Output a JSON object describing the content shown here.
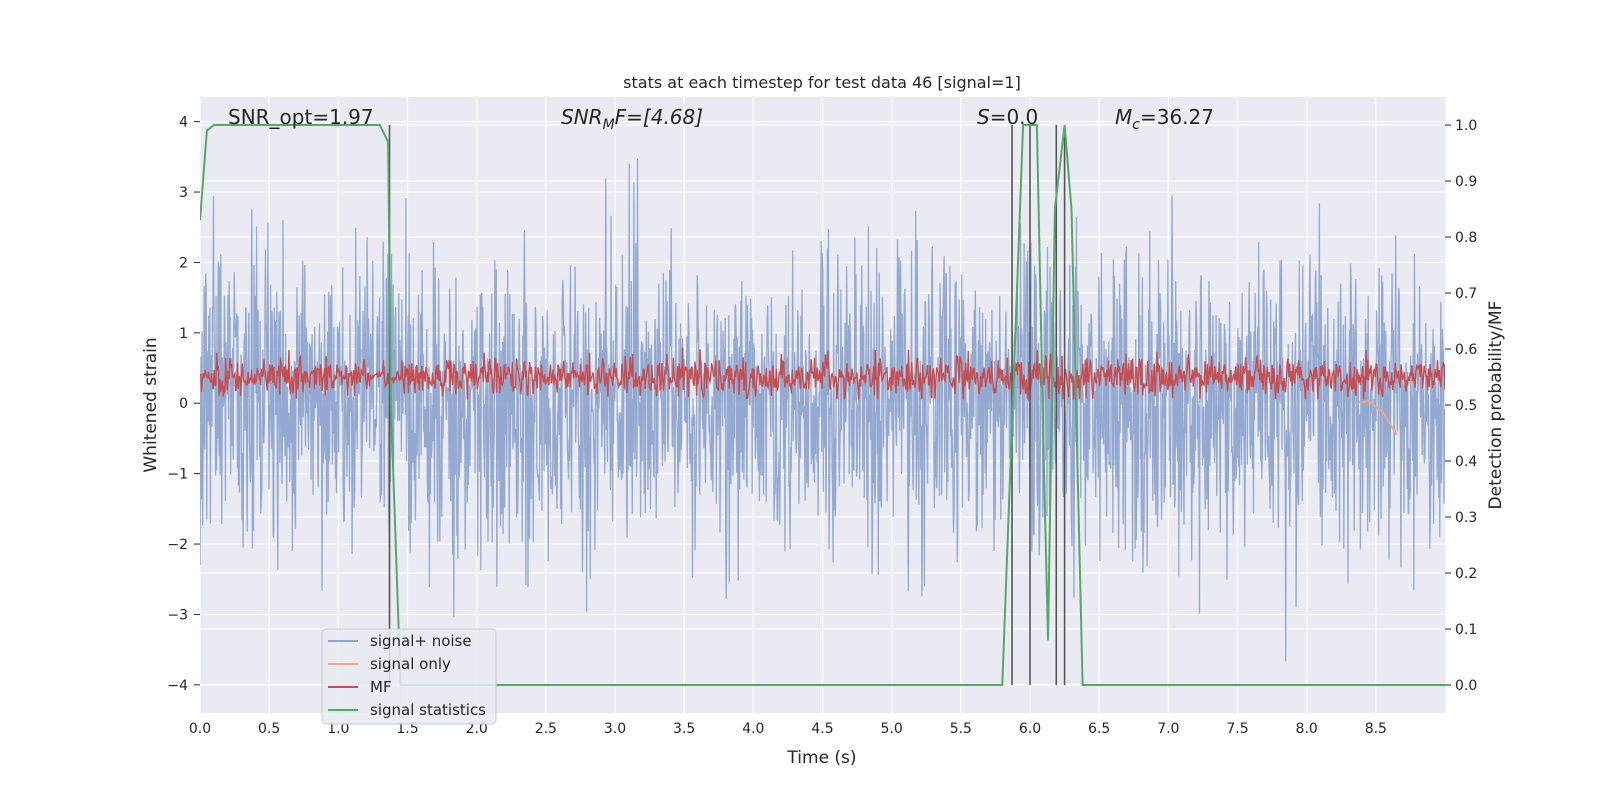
{
  "chart_data": {
    "type": "line",
    "title": "stats at each timestep for test data 46 [signal=1]",
    "xlabel": "Time (s)",
    "ylabel": "Whitened strain",
    "y2label": "Detection probability/MF",
    "xlim": [
      0.0,
      9.0
    ],
    "ylim": [
      -4.4,
      4.35
    ],
    "y2lim": [
      -0.05,
      1.05
    ],
    "xticks": [
      "0.0",
      "0.5",
      "1.0",
      "1.5",
      "2.0",
      "2.5",
      "3.0",
      "3.5",
      "4.0",
      "4.5",
      "5.0",
      "5.5",
      "6.0",
      "6.5",
      "7.0",
      "7.5",
      "8.0",
      "8.5"
    ],
    "yticks": [
      "−4",
      "−3",
      "−2",
      "−1",
      "0",
      "1",
      "2",
      "3",
      "4"
    ],
    "y2ticks": [
      "0.0",
      "0.1",
      "0.2",
      "0.3",
      "0.4",
      "0.5",
      "0.6",
      "0.7",
      "0.8",
      "0.9",
      "1.0"
    ],
    "grid": true,
    "legend_position": "lower-left",
    "annotations": {
      "snr_opt": "SNR_opt=1.97",
      "snr_mf_main": "SNR",
      "snr_mf_sub": "M",
      "snr_mf_rest": "F=[4.68]",
      "s_main": "S",
      "s_rest": "=0.0",
      "mc_main": "M",
      "mc_sub": "c",
      "mc_rest": "=36.27"
    },
    "series": [
      {
        "name": "signal+ noise",
        "color": "#8fa5cf",
        "axis": "left",
        "description_of_values": "white noise with sigma ~1, range about -4 to 4 over 0-9 s"
      },
      {
        "name": "signal only",
        "color": "#e8a98c",
        "axis": "left",
        "x": [
          8.35,
          8.45,
          8.5,
          8.55,
          8.6,
          8.65
        ],
        "values": [
          0.0,
          0.03,
          -0.05,
          -0.12,
          -0.28,
          -0.45
        ]
      },
      {
        "name": "MF",
        "color": "#c44e52",
        "axis": "right",
        "description_of_values": "noisy trace around 0.55 with peaks up to about 0.60-0.64"
      },
      {
        "name": "signal statistics",
        "color": "#55a868",
        "axis": "right",
        "x": [
          0.0,
          0.05,
          0.1,
          0.2,
          1.3,
          1.36,
          1.38,
          1.45,
          2.0,
          5.8,
          5.95,
          6.05,
          6.1,
          6.13,
          6.18,
          6.25,
          6.3,
          6.38,
          6.42,
          9.0
        ],
        "values": [
          0.83,
          0.99,
          1.0,
          1.0,
          1.0,
          0.97,
          0.5,
          0.0,
          0.0,
          0.0,
          1.0,
          1.0,
          0.4,
          0.08,
          0.85,
          1.0,
          0.85,
          0.0,
          0.0,
          0.0
        ]
      }
    ],
    "vertical_lines": [
      1.37,
      5.87,
      6.0,
      6.19,
      6.25
    ]
  }
}
